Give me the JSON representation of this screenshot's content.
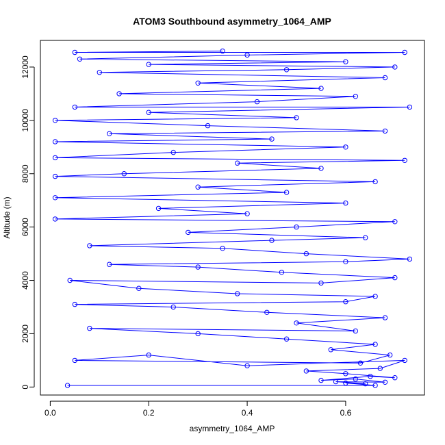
{
  "chart_data": {
    "type": "scatter",
    "title": "ATOM3 Southbound asymmetry_1064_AMP",
    "xlabel": "asymmetry_1064_AMP",
    "ylabel": "Altitude (m)",
    "xlim": [
      -0.02,
      0.76
    ],
    "ylim": [
      -300,
      13000
    ],
    "xticks": [
      0.0,
      0.2,
      0.4,
      0.6
    ],
    "xtick_labels": [
      "0.0",
      "0.2",
      "0.4",
      "0.6"
    ],
    "yticks": [
      0,
      2000,
      4000,
      6000,
      8000,
      10000,
      12000
    ],
    "ytick_labels": [
      "0",
      "2000",
      "4000",
      "6000",
      "8000",
      "10000",
      "12000"
    ],
    "style": "points connected by lines (type='b')",
    "series_color": "#0000ff",
    "grid": false,
    "legend": "none",
    "points": [
      [
        0.035,
        60
      ],
      [
        0.66,
        60
      ],
      [
        0.6,
        150
      ],
      [
        0.64,
        120
      ],
      [
        0.58,
        200
      ],
      [
        0.68,
        180
      ],
      [
        0.62,
        300
      ],
      [
        0.55,
        250
      ],
      [
        0.65,
        400
      ],
      [
        0.7,
        350
      ],
      [
        0.6,
        500
      ],
      [
        0.52,
        600
      ],
      [
        0.67,
        700
      ],
      [
        0.72,
        1000
      ],
      [
        0.4,
        800
      ],
      [
        0.2,
        1200
      ],
      [
        0.05,
        1000
      ],
      [
        0.63,
        900
      ],
      [
        0.69,
        1200
      ],
      [
        0.57,
        1400
      ],
      [
        0.66,
        1600
      ],
      [
        0.48,
        1800
      ],
      [
        0.3,
        2000
      ],
      [
        0.08,
        2200
      ],
      [
        0.62,
        2100
      ],
      [
        0.5,
        2400
      ],
      [
        0.68,
        2600
      ],
      [
        0.44,
        2800
      ],
      [
        0.25,
        3000
      ],
      [
        0.05,
        3100
      ],
      [
        0.6,
        3200
      ],
      [
        0.66,
        3400
      ],
      [
        0.38,
        3500
      ],
      [
        0.18,
        3700
      ],
      [
        0.04,
        4000
      ],
      [
        0.55,
        3900
      ],
      [
        0.7,
        4100
      ],
      [
        0.47,
        4300
      ],
      [
        0.3,
        4500
      ],
      [
        0.12,
        4600
      ],
      [
        0.6,
        4700
      ],
      [
        0.73,
        4800
      ],
      [
        0.52,
        5000
      ],
      [
        0.35,
        5200
      ],
      [
        0.08,
        5300
      ],
      [
        0.45,
        5500
      ],
      [
        0.64,
        5600
      ],
      [
        0.28,
        5800
      ],
      [
        0.5,
        6000
      ],
      [
        0.7,
        6200
      ],
      [
        0.01,
        6300
      ],
      [
        0.4,
        6500
      ],
      [
        0.22,
        6700
      ],
      [
        0.6,
        6900
      ],
      [
        0.01,
        7100
      ],
      [
        0.48,
        7300
      ],
      [
        0.3,
        7500
      ],
      [
        0.66,
        7700
      ],
      [
        0.01,
        7900
      ],
      [
        0.15,
        8000
      ],
      [
        0.55,
        8200
      ],
      [
        0.38,
        8400
      ],
      [
        0.72,
        8500
      ],
      [
        0.01,
        8600
      ],
      [
        0.25,
        8800
      ],
      [
        0.6,
        9000
      ],
      [
        0.01,
        9200
      ],
      [
        0.45,
        9300
      ],
      [
        0.12,
        9500
      ],
      [
        0.68,
        9600
      ],
      [
        0.32,
        9800
      ],
      [
        0.01,
        10000
      ],
      [
        0.5,
        10100
      ],
      [
        0.2,
        10300
      ],
      [
        0.73,
        10500
      ],
      [
        0.05,
        10500
      ],
      [
        0.42,
        10700
      ],
      [
        0.62,
        10900
      ],
      [
        0.14,
        11000
      ],
      [
        0.55,
        11200
      ],
      [
        0.3,
        11400
      ],
      [
        0.68,
        11600
      ],
      [
        0.1,
        11800
      ],
      [
        0.48,
        11900
      ],
      [
        0.7,
        12000
      ],
      [
        0.2,
        12100
      ],
      [
        0.6,
        12200
      ],
      [
        0.06,
        12300
      ],
      [
        0.4,
        12450
      ],
      [
        0.72,
        12550
      ],
      [
        0.05,
        12550
      ],
      [
        0.35,
        12600
      ]
    ]
  }
}
